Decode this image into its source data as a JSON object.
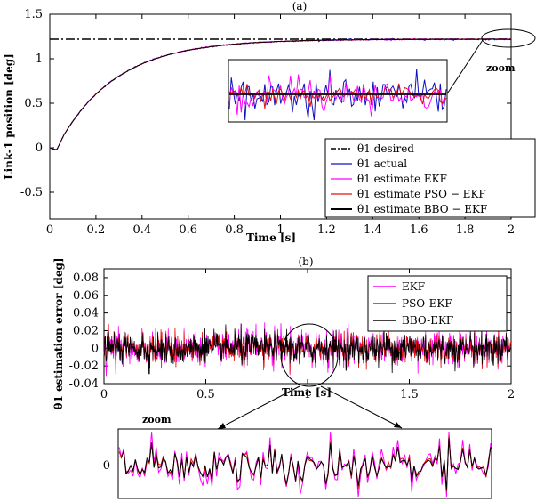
{
  "chart_data": [
    {
      "panel": "(a)",
      "type": "line",
      "xlabel": "Time [s]",
      "ylabel": "Link-1 position [deg]",
      "xlim": [
        0,
        2
      ],
      "ylim": [
        -0.8,
        1.5
      ],
      "xticks": [
        "0",
        "0.2",
        "0.4",
        "0.6",
        "0.8",
        "1",
        "1.2",
        "1.4",
        "1.6",
        "1.8",
        "2"
      ],
      "yticks": [
        "-0.5",
        "0",
        "0.5",
        "1",
        "1.5"
      ],
      "desired_value": 1.22,
      "response": {
        "start": 0.0,
        "final": 1.22,
        "time_constant": 0.25,
        "dip_min": -0.02
      },
      "series": [
        {
          "name": "θ1 desired",
          "color": "#000000",
          "style": "dashdot"
        },
        {
          "name": "θ1 actual",
          "color": "#1010c0",
          "style": "solid"
        },
        {
          "name": "θ1 estimate EKF",
          "color": "#ff00ff",
          "style": "solid"
        },
        {
          "name": "θ1 estimate PSO − EKF",
          "color": "#e01010",
          "style": "solid"
        },
        {
          "name": "θ1 estimate BBO − EKF",
          "color": "#000000",
          "style": "solid"
        }
      ],
      "legend_position": "bottom-right",
      "annotation": "zoom"
    },
    {
      "panel": "(b)",
      "type": "line",
      "xlabel": "Time [s]",
      "ylabel": "θ1 estimation error [deg]",
      "xlim": [
        0,
        2
      ],
      "ylim": [
        -0.04,
        0.09
      ],
      "xticks": [
        "0",
        "0.5",
        "1",
        "1.5",
        "2"
      ],
      "yticks": [
        "-0.04",
        "-0.02",
        "0",
        "0.02",
        "0.04",
        "0.06",
        "0.08"
      ],
      "noise_std": {
        "EKF": 0.011,
        "PSO-EKF": 0.009,
        "BBO-EKF": 0.0085
      },
      "series": [
        {
          "name": "EKF",
          "color": "#ff00ff"
        },
        {
          "name": "PSO-EKF",
          "color": "#e01010"
        },
        {
          "name": "BBO-EKF",
          "color": "#000000"
        }
      ],
      "legend_position": "top-right",
      "annotation": "zoom",
      "zoom_ytick": "0"
    }
  ]
}
